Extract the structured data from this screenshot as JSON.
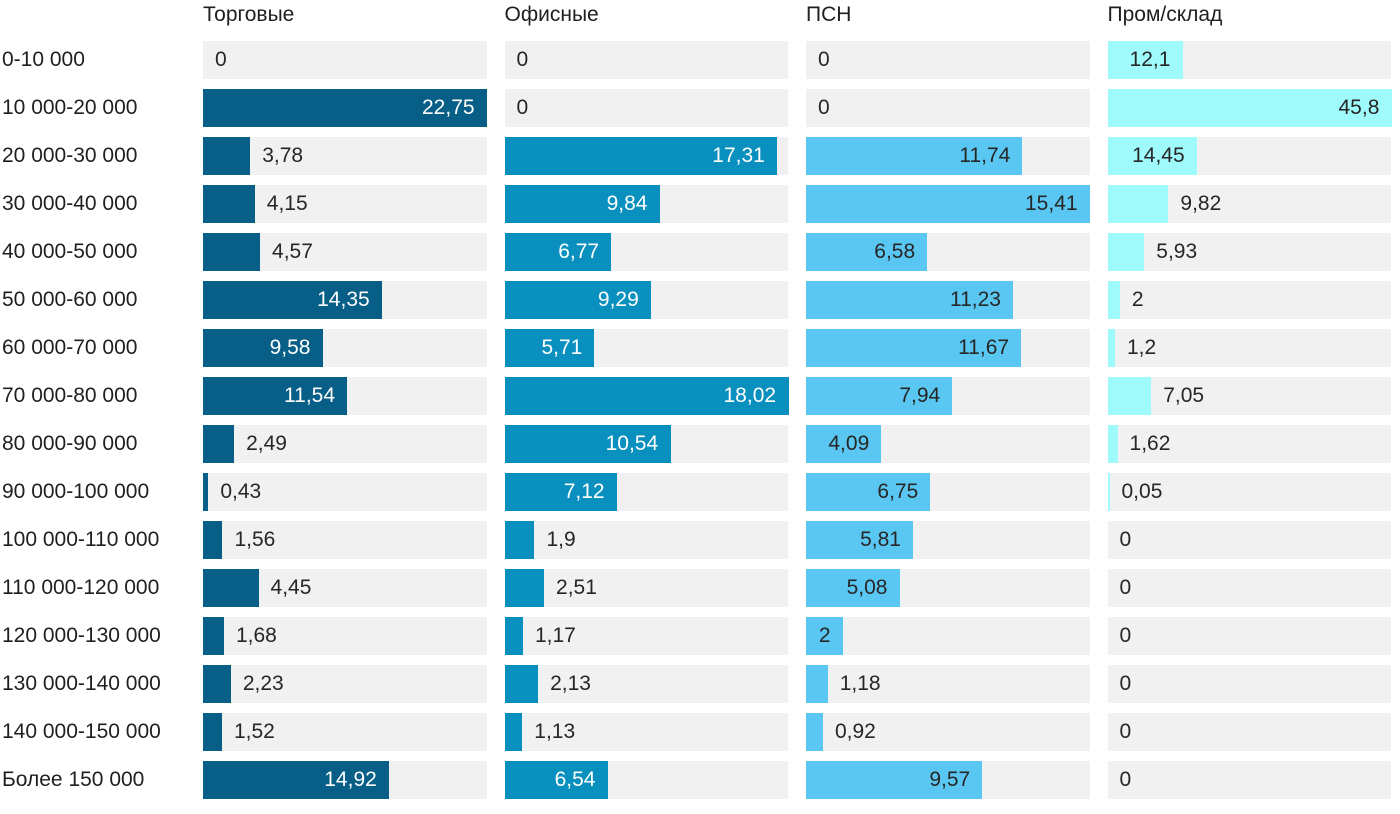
{
  "chart_data": {
    "type": "bar",
    "orientation": "horizontal",
    "scaling": "each column scaled to its own max value",
    "track_color": "#F1F1F2",
    "outside_label_color": "#262626",
    "decimal_separator": ",",
    "categories": [
      "0-10 000",
      "10 000-20 000",
      "20 000-30 000",
      "30 000-40 000",
      "40 000-50 000",
      "50 000-60 000",
      "60 000-70 000",
      "70 000-80 000",
      "80 000-90 000",
      "90 000-100 000",
      "100 000-110 000",
      "110 000-120 000",
      "120 000-130 000",
      "130 000-140 000",
      "140 000-150 000",
      "Более 150 000"
    ],
    "series": [
      {
        "name": "Торговые",
        "bar_color": "#075E86",
        "inside_label_color": "#FFFFFF",
        "values": [
          0,
          22.75,
          3.78,
          4.15,
          4.57,
          14.35,
          9.58,
          11.54,
          2.49,
          0.43,
          1.56,
          4.45,
          1.68,
          2.23,
          1.52,
          14.92
        ]
      },
      {
        "name": "Офисные",
        "bar_color": "#0990BF",
        "inside_label_color": "#FFFFFF",
        "values": [
          0,
          0,
          17.31,
          9.84,
          6.77,
          9.29,
          5.71,
          18.02,
          10.54,
          7.12,
          1.9,
          2.51,
          1.17,
          2.13,
          1.13,
          6.54
        ]
      },
      {
        "name": "ПСН",
        "bar_color": "#5AC7F2",
        "inside_label_color": "#262626",
        "values": [
          0,
          0,
          11.74,
          15.41,
          6.58,
          11.23,
          11.67,
          7.94,
          4.09,
          6.75,
          5.81,
          5.08,
          2,
          1.18,
          0.92,
          9.57
        ]
      },
      {
        "name": "Пром/склад",
        "bar_color": "#9FFBFB",
        "inside_label_color": "#262626",
        "values": [
          12.1,
          45.8,
          14.45,
          9.82,
          5.93,
          2,
          1.2,
          7.05,
          1.62,
          0.05,
          0,
          0,
          0,
          0,
          0,
          0
        ]
      }
    ]
  }
}
